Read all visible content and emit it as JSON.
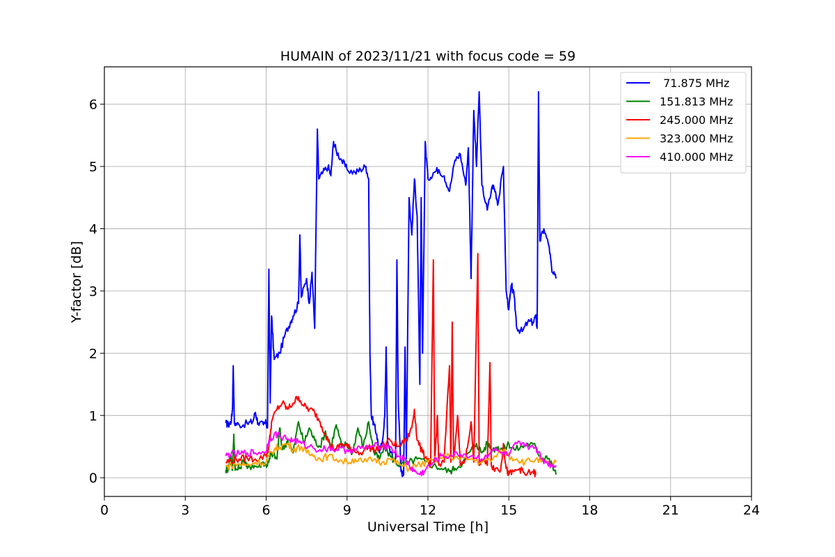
{
  "chart_data": {
    "type": "line",
    "title": "HUMAIN of 2023/11/21 with focus code = 59",
    "xlabel": "Universal Time [h]",
    "ylabel": "Y-factor [dB]",
    "xlim": [
      0,
      24
    ],
    "ylim": [
      -0.3,
      6.6
    ],
    "xticks": [
      0,
      3,
      6,
      9,
      12,
      15,
      18,
      21,
      24
    ],
    "yticks": [
      0,
      1,
      2,
      3,
      4,
      5,
      6
    ],
    "grid": true,
    "legend_position": "top-right",
    "series": [
      {
        "name": " 71.875 MHz",
        "color": "#0000ff",
        "points": [
          [
            4.5,
            0.88
          ],
          [
            4.6,
            0.85
          ],
          [
            4.7,
            0.9
          ],
          [
            4.75,
            1.1
          ],
          [
            4.78,
            1.8
          ],
          [
            4.82,
            0.88
          ],
          [
            5.0,
            0.85
          ],
          [
            5.3,
            0.87
          ],
          [
            5.5,
            0.9
          ],
          [
            5.6,
            1.05
          ],
          [
            5.7,
            0.88
          ],
          [
            5.9,
            0.85
          ],
          [
            6.0,
            0.88
          ],
          [
            6.05,
            0.8
          ],
          [
            6.1,
            3.35
          ],
          [
            6.15,
            1.2
          ],
          [
            6.2,
            2.6
          ],
          [
            6.3,
            1.9
          ],
          [
            6.5,
            2.0
          ],
          [
            6.7,
            2.3
          ],
          [
            6.9,
            2.5
          ],
          [
            7.0,
            2.6
          ],
          [
            7.2,
            2.8
          ],
          [
            7.25,
            3.9
          ],
          [
            7.3,
            2.9
          ],
          [
            7.5,
            3.2
          ],
          [
            7.6,
            2.8
          ],
          [
            7.7,
            3.3
          ],
          [
            7.8,
            2.4
          ],
          [
            7.9,
            5.6
          ],
          [
            7.95,
            4.8
          ],
          [
            8.1,
            4.9
          ],
          [
            8.3,
            5.0
          ],
          [
            8.4,
            4.85
          ],
          [
            8.5,
            5.4
          ],
          [
            8.6,
            5.25
          ],
          [
            8.8,
            5.1
          ],
          [
            9.0,
            4.95
          ],
          [
            9.3,
            4.9
          ],
          [
            9.5,
            4.95
          ],
          [
            9.7,
            5.0
          ],
          [
            9.8,
            4.8
          ],
          [
            9.85,
            2.0
          ],
          [
            9.9,
            1.0
          ],
          [
            10.0,
            0.85
          ],
          [
            10.1,
            0.7
          ],
          [
            10.2,
            0.4
          ],
          [
            10.3,
            0.55
          ],
          [
            10.4,
            1.0
          ],
          [
            10.45,
            2.1
          ],
          [
            10.5,
            0.6
          ],
          [
            10.7,
            0.3
          ],
          [
            10.8,
            0.3
          ],
          [
            10.85,
            3.5
          ],
          [
            10.9,
            1.2
          ],
          [
            11.0,
            0.1
          ],
          [
            11.1,
            0.05
          ],
          [
            11.15,
            2.1
          ],
          [
            11.2,
            0.3
          ],
          [
            11.3,
            4.5
          ],
          [
            11.4,
            3.9
          ],
          [
            11.5,
            4.8
          ],
          [
            11.6,
            4.2
          ],
          [
            11.7,
            1.5
          ],
          [
            11.75,
            4.5
          ],
          [
            11.8,
            2.0
          ],
          [
            11.9,
            5.4
          ],
          [
            12.0,
            4.8
          ],
          [
            12.2,
            4.9
          ],
          [
            12.4,
            4.95
          ],
          [
            12.6,
            4.85
          ],
          [
            12.8,
            4.6
          ],
          [
            13.0,
            5.1
          ],
          [
            13.2,
            5.2
          ],
          [
            13.4,
            4.7
          ],
          [
            13.5,
            5.3
          ],
          [
            13.6,
            3.2
          ],
          [
            13.7,
            5.9
          ],
          [
            13.8,
            5.0
          ],
          [
            13.9,
            6.2
          ],
          [
            14.0,
            4.7
          ],
          [
            14.2,
            4.3
          ],
          [
            14.4,
            4.7
          ],
          [
            14.5,
            4.6
          ],
          [
            14.6,
            4.4
          ],
          [
            14.8,
            5.0
          ],
          [
            14.9,
            3.0
          ],
          [
            15.0,
            2.7
          ],
          [
            15.1,
            3.1
          ],
          [
            15.2,
            2.9
          ],
          [
            15.3,
            2.4
          ],
          [
            15.5,
            2.35
          ],
          [
            15.7,
            2.5
          ],
          [
            15.9,
            2.5
          ],
          [
            16.0,
            2.6
          ],
          [
            16.05,
            2.4
          ],
          [
            16.1,
            6.2
          ],
          [
            16.15,
            3.8
          ],
          [
            16.3,
            4.0
          ],
          [
            16.5,
            3.7
          ],
          [
            16.6,
            3.3
          ],
          [
            16.75,
            3.2
          ]
        ]
      },
      {
        "name": "151.813 MHz",
        "color": "#008000",
        "points": [
          [
            4.5,
            0.12
          ],
          [
            4.6,
            0.15
          ],
          [
            4.7,
            0.35
          ],
          [
            4.75,
            0.12
          ],
          [
            4.8,
            0.7
          ],
          [
            4.85,
            0.12
          ],
          [
            5.0,
            0.15
          ],
          [
            5.2,
            0.3
          ],
          [
            5.3,
            0.15
          ],
          [
            5.5,
            0.2
          ],
          [
            5.7,
            0.18
          ],
          [
            5.9,
            0.25
          ],
          [
            6.0,
            0.2
          ],
          [
            6.1,
            0.25
          ],
          [
            6.2,
            0.4
          ],
          [
            6.4,
            0.3
          ],
          [
            6.5,
            0.8
          ],
          [
            6.6,
            0.45
          ],
          [
            6.8,
            0.6
          ],
          [
            7.0,
            0.4
          ],
          [
            7.2,
            0.9
          ],
          [
            7.4,
            0.55
          ],
          [
            7.6,
            0.8
          ],
          [
            7.8,
            0.6
          ],
          [
            8.0,
            0.5
          ],
          [
            8.2,
            0.75
          ],
          [
            8.4,
            0.5
          ],
          [
            8.6,
            0.85
          ],
          [
            8.8,
            0.5
          ],
          [
            9.0,
            0.55
          ],
          [
            9.2,
            0.4
          ],
          [
            9.4,
            0.8
          ],
          [
            9.6,
            0.5
          ],
          [
            9.8,
            0.9
          ],
          [
            10.0,
            0.4
          ],
          [
            10.2,
            0.3
          ],
          [
            10.4,
            0.5
          ],
          [
            10.6,
            0.35
          ],
          [
            10.8,
            0.25
          ],
          [
            11.0,
            0.2
          ],
          [
            11.3,
            0.25
          ],
          [
            11.6,
            0.3
          ],
          [
            11.9,
            0.25
          ],
          [
            12.2,
            0.2
          ],
          [
            12.5,
            0.15
          ],
          [
            12.8,
            0.1
          ],
          [
            13.0,
            0.15
          ],
          [
            13.3,
            0.25
          ],
          [
            13.6,
            0.45
          ],
          [
            13.8,
            0.55
          ],
          [
            14.0,
            0.4
          ],
          [
            14.2,
            0.55
          ],
          [
            14.4,
            0.45
          ],
          [
            14.6,
            0.5
          ],
          [
            14.8,
            0.45
          ],
          [
            15.0,
            0.55
          ],
          [
            15.2,
            0.45
          ],
          [
            15.5,
            0.5
          ],
          [
            15.7,
            0.55
          ],
          [
            16.0,
            0.5
          ],
          [
            16.2,
            0.3
          ],
          [
            16.4,
            0.35
          ],
          [
            16.6,
            0.2
          ],
          [
            16.75,
            0.05
          ]
        ]
      },
      {
        "name": "245.000 MHz",
        "color": "#ff0000",
        "points": [
          [
            4.5,
            0.25
          ],
          [
            4.7,
            0.28
          ],
          [
            5.0,
            0.3
          ],
          [
            5.3,
            0.32
          ],
          [
            5.6,
            0.3
          ],
          [
            6.0,
            0.35
          ],
          [
            6.1,
            0.5
          ],
          [
            6.2,
            0.9
          ],
          [
            6.4,
            1.1
          ],
          [
            6.6,
            1.2
          ],
          [
            6.8,
            1.1
          ],
          [
            7.0,
            1.2
          ],
          [
            7.2,
            1.3
          ],
          [
            7.4,
            1.15
          ],
          [
            7.6,
            1.1
          ],
          [
            7.8,
            1.05
          ],
          [
            8.0,
            0.9
          ],
          [
            8.2,
            0.7
          ],
          [
            8.4,
            0.5
          ],
          [
            8.6,
            0.45
          ],
          [
            8.8,
            0.55
          ],
          [
            9.0,
            0.5
          ],
          [
            9.2,
            0.45
          ],
          [
            9.5,
            0.4
          ],
          [
            9.8,
            0.5
          ],
          [
            10.0,
            0.45
          ],
          [
            10.3,
            0.5
          ],
          [
            10.6,
            0.6
          ],
          [
            10.9,
            0.5
          ],
          [
            11.2,
            0.6
          ],
          [
            11.4,
            0.8
          ],
          [
            11.5,
            1.1
          ],
          [
            11.6,
            0.6
          ],
          [
            11.8,
            0.4
          ],
          [
            12.0,
            0.3
          ],
          [
            12.1,
            0.2
          ],
          [
            12.2,
            3.5
          ],
          [
            12.25,
            0.25
          ],
          [
            12.35,
            1.0
          ],
          [
            12.4,
            0.2
          ],
          [
            12.6,
            0.25
          ],
          [
            12.8,
            1.8
          ],
          [
            12.85,
            0.25
          ],
          [
            12.9,
            2.5
          ],
          [
            12.95,
            0.3
          ],
          [
            13.1,
            1.0
          ],
          [
            13.2,
            0.2
          ],
          [
            13.4,
            0.3
          ],
          [
            13.6,
            0.9
          ],
          [
            13.7,
            0.25
          ],
          [
            13.85,
            3.6
          ],
          [
            13.9,
            0.2
          ],
          [
            14.0,
            0.3
          ],
          [
            14.2,
            0.2
          ],
          [
            14.3,
            1.85
          ],
          [
            14.35,
            0.2
          ],
          [
            14.5,
            0.15
          ],
          [
            14.7,
            0.12
          ],
          [
            14.8,
            0.55
          ],
          [
            14.9,
            0.15
          ],
          [
            15.0,
            0.05
          ],
          [
            15.2,
            0.1
          ],
          [
            15.4,
            0.15
          ],
          [
            15.6,
            0.05
          ],
          [
            15.9,
            0.1
          ],
          [
            16.0,
            0.05
          ]
        ]
      },
      {
        "name": "323.000 MHz",
        "color": "#ffa500",
        "points": [
          [
            4.5,
            0.18
          ],
          [
            4.7,
            0.2
          ],
          [
            5.0,
            0.22
          ],
          [
            5.3,
            0.2
          ],
          [
            5.6,
            0.25
          ],
          [
            6.0,
            0.25
          ],
          [
            6.1,
            0.35
          ],
          [
            6.3,
            0.45
          ],
          [
            6.5,
            0.5
          ],
          [
            6.8,
            0.55
          ],
          [
            7.0,
            0.45
          ],
          [
            7.3,
            0.5
          ],
          [
            7.5,
            0.4
          ],
          [
            7.8,
            0.35
          ],
          [
            8.0,
            0.3
          ],
          [
            8.3,
            0.35
          ],
          [
            8.6,
            0.3
          ],
          [
            9.0,
            0.25
          ],
          [
            9.3,
            0.3
          ],
          [
            9.6,
            0.25
          ],
          [
            10.0,
            0.3
          ],
          [
            10.3,
            0.25
          ],
          [
            10.6,
            0.3
          ],
          [
            11.0,
            0.2
          ],
          [
            11.3,
            0.15
          ],
          [
            11.6,
            0.2
          ],
          [
            12.0,
            0.25
          ],
          [
            12.4,
            0.3
          ],
          [
            12.8,
            0.35
          ],
          [
            13.2,
            0.3
          ],
          [
            13.6,
            0.3
          ],
          [
            14.0,
            0.25
          ],
          [
            14.4,
            0.3
          ],
          [
            14.8,
            0.45
          ],
          [
            15.0,
            0.35
          ],
          [
            15.3,
            0.3
          ],
          [
            15.6,
            0.25
          ],
          [
            16.0,
            0.3
          ],
          [
            16.3,
            0.25
          ],
          [
            16.6,
            0.2
          ],
          [
            16.75,
            0.25
          ]
        ]
      },
      {
        "name": "410.000 MHz",
        "color": "#ff00ff",
        "points": [
          [
            4.5,
            0.35
          ],
          [
            4.7,
            0.38
          ],
          [
            5.0,
            0.38
          ],
          [
            5.3,
            0.4
          ],
          [
            5.6,
            0.4
          ],
          [
            6.0,
            0.42
          ],
          [
            6.1,
            0.6
          ],
          [
            6.3,
            0.7
          ],
          [
            6.5,
            0.68
          ],
          [
            6.8,
            0.62
          ],
          [
            7.0,
            0.6
          ],
          [
            7.3,
            0.55
          ],
          [
            7.6,
            0.5
          ],
          [
            8.0,
            0.45
          ],
          [
            8.3,
            0.48
          ],
          [
            8.6,
            0.45
          ],
          [
            9.0,
            0.45
          ],
          [
            9.3,
            0.45
          ],
          [
            9.6,
            0.48
          ],
          [
            10.0,
            0.5
          ],
          [
            10.3,
            0.52
          ],
          [
            10.6,
            0.5
          ],
          [
            10.9,
            0.35
          ],
          [
            11.1,
            0.3
          ],
          [
            11.3,
            0.2
          ],
          [
            11.5,
            0.1
          ],
          [
            11.7,
            0.05
          ],
          [
            11.9,
            0.12
          ],
          [
            12.2,
            0.25
          ],
          [
            12.5,
            0.35
          ],
          [
            12.8,
            0.35
          ],
          [
            13.2,
            0.38
          ],
          [
            13.6,
            0.35
          ],
          [
            14.0,
            0.3
          ],
          [
            14.4,
            0.45
          ],
          [
            14.7,
            0.4
          ],
          [
            15.0,
            0.35
          ],
          [
            15.3,
            0.55
          ],
          [
            15.6,
            0.5
          ],
          [
            16.0,
            0.5
          ],
          [
            16.2,
            0.3
          ],
          [
            16.4,
            0.25
          ],
          [
            16.6,
            0.2
          ],
          [
            16.75,
            0.2
          ]
        ]
      }
    ]
  }
}
